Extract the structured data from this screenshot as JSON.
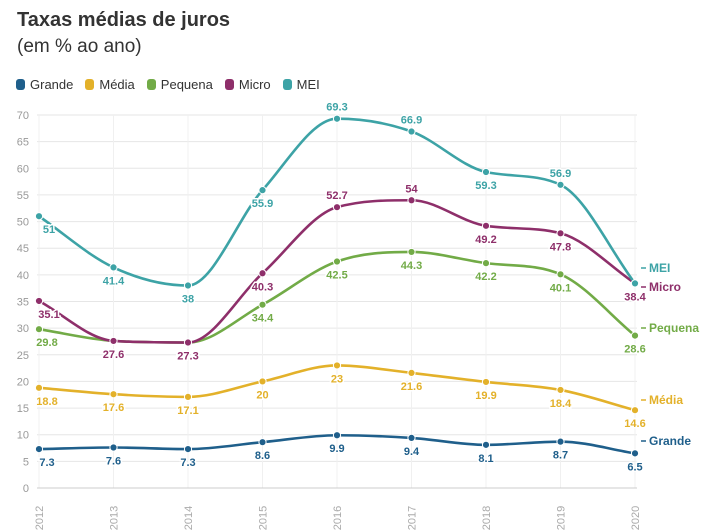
{
  "title": "Taxas médias de juros",
  "subtitle": "(em % ao ano)",
  "chart_data": {
    "type": "line",
    "title": "Taxas médias de juros",
    "subtitle": "(em % ao ano)",
    "x": [
      "2012",
      "2013",
      "2014",
      "2015",
      "2016",
      "2017",
      "2018",
      "2019",
      "2020"
    ],
    "ylim": [
      0,
      70
    ],
    "yticks": [
      "0",
      "5",
      "10",
      "15",
      "20",
      "25",
      "30",
      "35",
      "40",
      "45",
      "50",
      "55",
      "60",
      "65",
      "70"
    ],
    "grid": true,
    "legend_position": "top-left",
    "series": [
      {
        "name": "Grande",
        "color": "#1f5f8b",
        "values": [
          7.3,
          7.6,
          7.3,
          8.6,
          9.9,
          9.4,
          8.1,
          8.7,
          6.5
        ]
      },
      {
        "name": "Média",
        "color": "#e3b12a",
        "values": [
          18.8,
          17.6,
          17.1,
          20,
          23,
          21.6,
          19.9,
          18.4,
          14.6
        ]
      },
      {
        "name": "Pequena",
        "color": "#72ab47",
        "values": [
          29.8,
          27.6,
          27.3,
          34.4,
          42.5,
          44.3,
          42.2,
          40.1,
          28.6
        ]
      },
      {
        "name": "Micro",
        "color": "#8e2f6a",
        "values": [
          35.1,
          27.6,
          27.3,
          40.3,
          52.7,
          54,
          49.2,
          47.8,
          38.4
        ]
      },
      {
        "name": "MEI",
        "color": "#3da3a6",
        "values": [
          51,
          41.4,
          38,
          55.9,
          69.3,
          66.9,
          59.3,
          56.9,
          38.4
        ]
      }
    ]
  }
}
